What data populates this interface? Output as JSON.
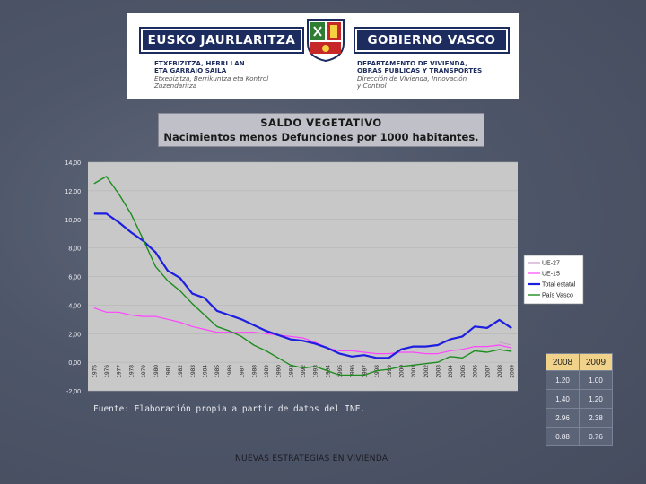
{
  "header": {
    "brand_left": "EUSKO JAURLARITZA",
    "brand_right": "GOBIERNO VASCO",
    "dept_left_bold_1": "ETXEBIZITZA, HERRI LAN",
    "dept_left_bold_2": "ETA GARRAIO SAILA",
    "dept_left_italic_1": "Etxebizitza, Berrikuntza eta Kontrol",
    "dept_left_italic_2": "Zuzendaritza",
    "dept_right_bold_1": "DEPARTAMENTO DE VIVIENDA,",
    "dept_right_bold_2": "OBRAS PUBLICAS Y TRANSPORTES",
    "dept_right_italic_1": "Dirección de Vivienda, Innovación",
    "dept_right_italic_2": "y Control"
  },
  "colors": {
    "ue27": "#c8a0c8",
    "ue15": "#ff44ff",
    "total_estatal": "#1e1ee0",
    "pais_vasco": "#1e8c1e",
    "plot_background": "#c8c8c8"
  },
  "chart_data": {
    "type": "line",
    "title": "SALDO VEGETATIVO",
    "subtitle": "Nacimientos menos Defunciones por 1000 habitantes.",
    "xlabel": "",
    "ylabel": "",
    "ylim": [
      -2,
      14
    ],
    "y_ticks": [
      "-2,00",
      "0,00",
      "2,00",
      "4,00",
      "6,00",
      "8,00",
      "10,00",
      "12,00",
      "14,00"
    ],
    "x": [
      "1975",
      "1976",
      "1977",
      "1978",
      "1979",
      "1980",
      "1981",
      "1982",
      "1983",
      "1984",
      "1985",
      "1986",
      "1987",
      "1988",
      "1989",
      "1990",
      "1991",
      "1992",
      "1993",
      "1994",
      "1995",
      "1996",
      "1997",
      "1998",
      "1999",
      "2000",
      "2001",
      "2002",
      "2003",
      "2004",
      "2005",
      "2006",
      "2007",
      "2008",
      "2009"
    ],
    "legend_position": "right",
    "series": [
      {
        "name": "UE-27",
        "values": [
          null,
          null,
          null,
          null,
          null,
          null,
          null,
          null,
          null,
          null,
          null,
          null,
          null,
          null,
          null,
          null,
          null,
          null,
          null,
          null,
          null,
          null,
          null,
          null,
          null,
          null,
          null,
          null,
          null,
          null,
          null,
          null,
          null,
          1.4,
          1.2
        ]
      },
      {
        "name": "UE-15",
        "values": [
          3.8,
          3.5,
          3.5,
          3.3,
          3.2,
          3.2,
          3.0,
          2.8,
          2.5,
          2.3,
          2.1,
          2.1,
          2.1,
          2.1,
          2.0,
          1.9,
          1.8,
          1.7,
          1.4,
          1.0,
          0.8,
          0.8,
          0.7,
          0.6,
          0.6,
          0.7,
          0.7,
          0.6,
          0.6,
          0.8,
          0.9,
          1.1,
          1.1,
          1.2,
          1.0
        ]
      },
      {
        "name": "Total estatal",
        "values": [
          10.4,
          10.4,
          9.8,
          9.1,
          8.5,
          7.7,
          6.4,
          5.9,
          4.8,
          4.5,
          3.6,
          3.3,
          3.0,
          2.6,
          2.2,
          1.9,
          1.6,
          1.5,
          1.3,
          1.0,
          0.6,
          0.4,
          0.5,
          0.3,
          0.3,
          0.9,
          1.1,
          1.1,
          1.2,
          1.6,
          1.8,
          2.5,
          2.4,
          2.96,
          2.38
        ]
      },
      {
        "name": "País Vasco",
        "values": [
          12.5,
          13.0,
          11.8,
          10.4,
          8.6,
          6.7,
          5.7,
          5.0,
          4.1,
          3.3,
          2.5,
          2.2,
          1.8,
          1.2,
          0.8,
          0.3,
          -0.2,
          -0.4,
          -0.3,
          -0.6,
          -0.9,
          -0.9,
          -0.9,
          -0.6,
          -0.5,
          -0.3,
          -0.2,
          -0.1,
          0.0,
          0.4,
          0.3,
          0.8,
          0.7,
          0.88,
          0.76
        ]
      }
    ]
  },
  "data_table": {
    "headers": [
      "2008",
      "2009"
    ],
    "rows": [
      [
        "1.20",
        "1.00"
      ],
      [
        "1.40",
        "1.20"
      ],
      [
        "2.96",
        "2.38"
      ],
      [
        "0.88",
        "0.76"
      ]
    ]
  },
  "source_text": "Fuente: Elaboración propia a partir de datos del INE.",
  "footer_text": "NUEVAS ESTRATEGIAS EN VIVIENDA"
}
